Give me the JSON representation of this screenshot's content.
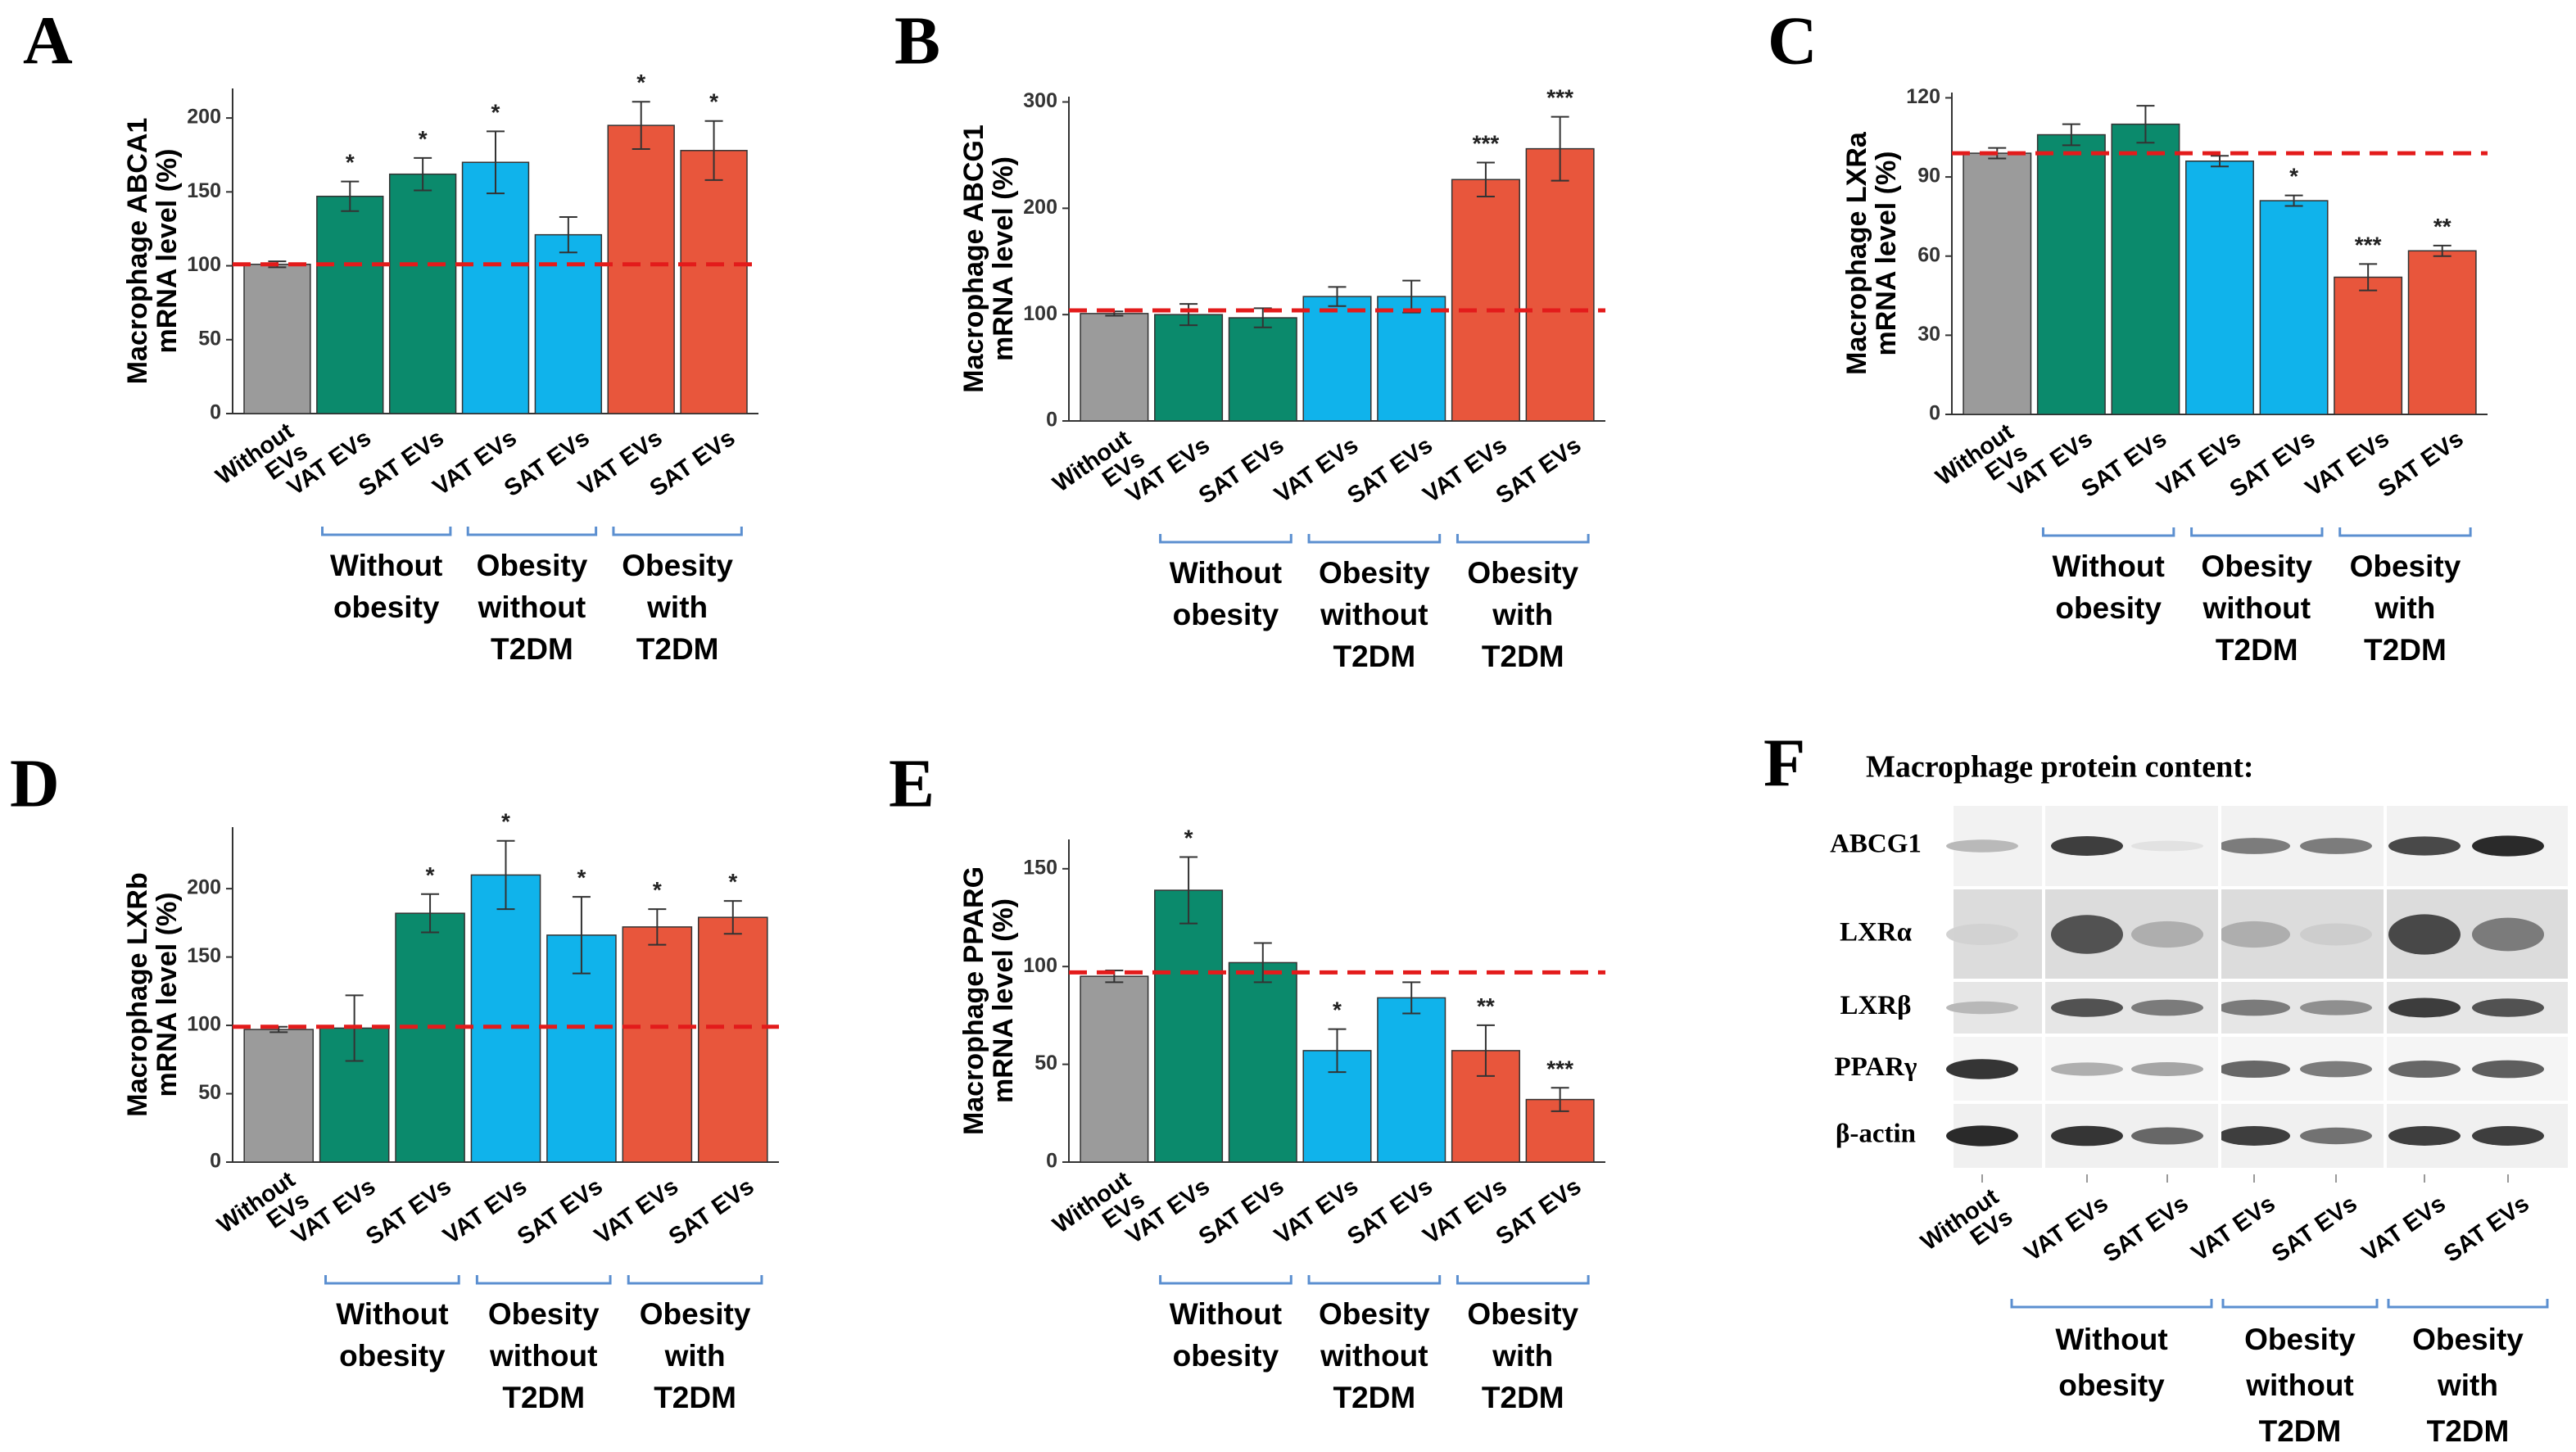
{
  "panel_letters": [
    "A",
    "B",
    "C",
    "D",
    "E",
    "F"
  ],
  "chart_data": [
    {
      "type": "bar",
      "panel": "A",
      "ylabel_line1": "Macrophage ABCA1",
      "ylabel_line2": "mRNA level (%)",
      "ylim": [
        0,
        220
      ],
      "yticks": [
        0,
        50,
        100,
        150,
        200
      ],
      "categories": [
        "Without EVs",
        "VAT EVs",
        "SAT EVs",
        "VAT EVs",
        "SAT EVs",
        "VAT EVs",
        "SAT EVs"
      ],
      "values": [
        101,
        147,
        162,
        170,
        121,
        195,
        178
      ],
      "errors": [
        2,
        10,
        11,
        21,
        12,
        16,
        20
      ],
      "significance": [
        "",
        "*",
        "*",
        "*",
        "",
        "*",
        "*"
      ],
      "colors": [
        "#9b9b9b",
        "#0b8a6c",
        "#0b8a6c",
        "#10b3eb",
        "#10b3eb",
        "#e8563c",
        "#e8563c"
      ],
      "reference_line": 101,
      "reference_color": "#e31b1b"
    },
    {
      "type": "bar",
      "panel": "B",
      "ylabel_line1": "Macrophage ABCG1",
      "ylabel_line2": "mRNA level (%)",
      "ylim": [
        0,
        305
      ],
      "yticks": [
        0,
        100,
        200,
        300
      ],
      "categories": [
        "Without EVs",
        "VAT EVs",
        "SAT EVs",
        "VAT EVs",
        "SAT EVs",
        "VAT EVs",
        "SAT EVs"
      ],
      "values": [
        101,
        100,
        97,
        117,
        117,
        227,
        256
      ],
      "errors": [
        2,
        10,
        9,
        9,
        15,
        16,
        30
      ],
      "significance": [
        "",
        "",
        "",
        "",
        "",
        "***",
        "***"
      ],
      "colors": [
        "#9b9b9b",
        "#0b8a6c",
        "#0b8a6c",
        "#10b3eb",
        "#10b3eb",
        "#e8563c",
        "#e8563c"
      ],
      "reference_line": 104,
      "reference_color": "#e31b1b"
    },
    {
      "type": "bar",
      "panel": "C",
      "ylabel_line1": "Macrophage LXRa",
      "ylabel_line2": "mRNA level (%)",
      "ylim": [
        0,
        122
      ],
      "yticks": [
        0,
        30,
        60,
        90,
        120
      ],
      "categories": [
        "Without EVs",
        "VAT EVs",
        "SAT EVs",
        "VAT EVs",
        "SAT EVs",
        "VAT EVs",
        "SAT EVs"
      ],
      "values": [
        99,
        106,
        110,
        96,
        81,
        52,
        62
      ],
      "errors": [
        2,
        4,
        7,
        2,
        2,
        5,
        2
      ],
      "significance": [
        "",
        "",
        "",
        "",
        "*",
        "***",
        "**"
      ],
      "colors": [
        "#9b9b9b",
        "#0b8a6c",
        "#0b8a6c",
        "#10b3eb",
        "#10b3eb",
        "#e8563c",
        "#e8563c"
      ],
      "reference_line": 99,
      "reference_color": "#e31b1b"
    },
    {
      "type": "bar",
      "panel": "D",
      "ylabel_line1": "Macrophage LXRb",
      "ylabel_line2": "mRNA level (%)",
      "ylim": [
        0,
        245
      ],
      "yticks": [
        0,
        50,
        100,
        150,
        200
      ],
      "categories": [
        "Without EVs",
        "VAT EVs",
        "SAT EVs",
        "VAT EVs",
        "SAT EVs",
        "VAT EVs",
        "SAT EVs"
      ],
      "values": [
        97,
        98,
        182,
        210,
        166,
        172,
        179
      ],
      "errors": [
        2,
        24,
        14,
        25,
        28,
        13,
        12
      ],
      "significance": [
        "",
        "",
        "*",
        "*",
        "*",
        "*",
        "*"
      ],
      "colors": [
        "#9b9b9b",
        "#0b8a6c",
        "#0b8a6c",
        "#10b3eb",
        "#10b3eb",
        "#e8563c",
        "#e8563c"
      ],
      "reference_line": 99,
      "reference_color": "#e31b1b"
    },
    {
      "type": "bar",
      "panel": "E",
      "ylabel_line1": "Macrophage PPARG",
      "ylabel_line2": "mRNA level (%)",
      "ylim": [
        0,
        165
      ],
      "yticks": [
        0,
        50,
        100,
        150
      ],
      "categories": [
        "Without EVs",
        "VAT EVs",
        "SAT EVs",
        "VAT EVs",
        "SAT EVs",
        "VAT EVs",
        "SAT EVs"
      ],
      "values": [
        95,
        139,
        102,
        57,
        84,
        57,
        32
      ],
      "errors": [
        3,
        17,
        10,
        11,
        8,
        13,
        6
      ],
      "significance": [
        "",
        "*",
        "",
        "*",
        "",
        "**",
        "***"
      ],
      "colors": [
        "#9b9b9b",
        "#0b8a6c",
        "#0b8a6c",
        "#10b3eb",
        "#10b3eb",
        "#e8563c",
        "#e8563c"
      ],
      "reference_line": 97,
      "reference_color": "#e31b1b"
    }
  ],
  "xcat_labels": {
    "without_evs_line1": "Without",
    "without_evs_line2": "EVs",
    "vat": "VAT EVs",
    "sat": "SAT EVs"
  },
  "groups": [
    {
      "lines": [
        "Without",
        "obesity"
      ]
    },
    {
      "lines": [
        "Obesity",
        "without",
        "T2DM"
      ]
    },
    {
      "lines": [
        "Obesity",
        "with",
        "T2DM"
      ]
    }
  ],
  "bracket_color": "#5b8fd0",
  "western_blot": {
    "title": "Macrophage protein content:",
    "proteins": [
      "ABCG1",
      "LXRα",
      "LXRβ",
      "PPARγ",
      "β-actin"
    ],
    "band_intensity": [
      [
        0.25,
        0.85,
        0.05,
        0.55,
        0.55,
        0.8,
        0.95
      ],
      [
        0.12,
        0.75,
        0.3,
        0.3,
        0.15,
        0.8,
        0.55
      ],
      [
        0.25,
        0.75,
        0.55,
        0.55,
        0.45,
        0.85,
        0.75
      ],
      [
        0.9,
        0.3,
        0.35,
        0.65,
        0.55,
        0.65,
        0.7
      ],
      [
        0.95,
        0.9,
        0.65,
        0.85,
        0.6,
        0.85,
        0.85
      ]
    ]
  }
}
